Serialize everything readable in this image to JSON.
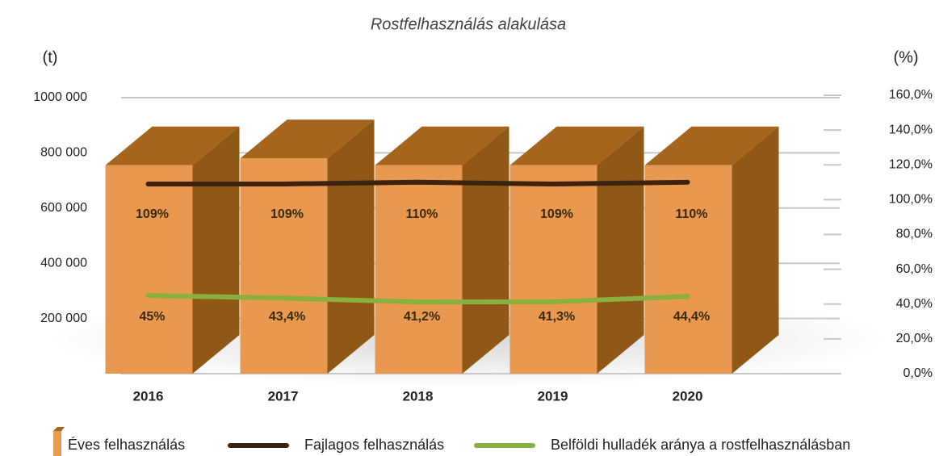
{
  "chart_data": {
    "type": "bar_line",
    "title": "Rostfelhasználás alakulása",
    "y_label": "(t)",
    "y2_label": "(%)",
    "categories": [
      "2016",
      "2017",
      "2018",
      "2019",
      "2020"
    ],
    "series": [
      {
        "name": "Éves felhasználás",
        "type": "bar",
        "color": "#e8994f",
        "values": [
          755000,
          780000,
          755000,
          755000,
          755000
        ]
      },
      {
        "name": "Fajlagos felhasználás",
        "type": "line",
        "axis": "y2",
        "color": "#3d2210",
        "values": [
          109,
          109,
          110,
          109,
          110
        ],
        "value_labels": [
          "109%",
          "109%",
          "110%",
          "109%",
          "110%"
        ]
      },
      {
        "name": "Belföldi hulladék aránya a rostfelhasználásban",
        "type": "line",
        "axis": "y2",
        "color": "#8ab040",
        "values": [
          45,
          43.4,
          41.2,
          41.3,
          44.4
        ],
        "value_labels": [
          "45%",
          "43,4%",
          "41,2%",
          "41,3%",
          "44,4%"
        ]
      }
    ],
    "ylim": [
      0,
      1000000
    ],
    "yticks": [
      {
        "value": 200000,
        "label": "200 000"
      },
      {
        "value": 400000,
        "label": "400 000"
      },
      {
        "value": 600000,
        "label": "600 000"
      },
      {
        "value": 800000,
        "label": "800 000"
      },
      {
        "value": 1000000,
        "label": "1000 000"
      }
    ],
    "y2lim": [
      0,
      160
    ],
    "y2ticks": [
      {
        "value": 0,
        "label": "0,0%"
      },
      {
        "value": 20,
        "label": "20,0%"
      },
      {
        "value": 40,
        "label": "40,0%"
      },
      {
        "value": 60,
        "label": "60,0%"
      },
      {
        "value": 80,
        "label": "80,0%"
      },
      {
        "value": 100,
        "label": "100,0%"
      },
      {
        "value": 120,
        "label": "120,0%"
      },
      {
        "value": 140,
        "label": "140,0%"
      },
      {
        "value": 160,
        "label": "160,0%"
      }
    ],
    "grid": true
  }
}
